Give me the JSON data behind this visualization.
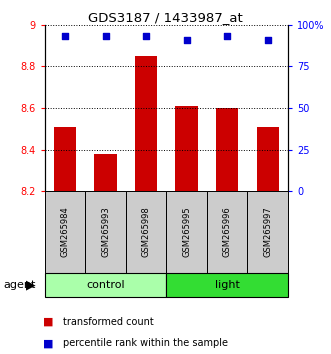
{
  "title": "GDS3187 / 1433987_at",
  "samples": [
    "GSM265984",
    "GSM265993",
    "GSM265998",
    "GSM265995",
    "GSM265996",
    "GSM265997"
  ],
  "bar_values": [
    8.51,
    8.38,
    8.85,
    8.61,
    8.6,
    8.51
  ],
  "percentile_values": [
    93,
    93,
    93,
    91,
    93,
    91
  ],
  "bar_color": "#cc0000",
  "percentile_color": "#0000cc",
  "ylim_left": [
    8.2,
    9.0
  ],
  "ylim_right": [
    0,
    100
  ],
  "yticks_left": [
    8.2,
    8.4,
    8.6,
    8.8,
    9.0
  ],
  "ytick_labels_left": [
    "8.2",
    "8.4",
    "8.6",
    "8.8",
    "9"
  ],
  "yticks_right": [
    0,
    25,
    50,
    75,
    100
  ],
  "ytick_labels_right": [
    "0",
    "25",
    "50",
    "75",
    "100%"
  ],
  "groups": [
    {
      "label": "control",
      "start": 0,
      "end": 3,
      "color": "#aaffaa"
    },
    {
      "label": "light",
      "start": 3,
      "end": 6,
      "color": "#33dd33"
    }
  ],
  "agent_label": "agent",
  "bar_width": 0.55,
  "label_box_color": "#cccccc",
  "bar_bottom": 8.2
}
